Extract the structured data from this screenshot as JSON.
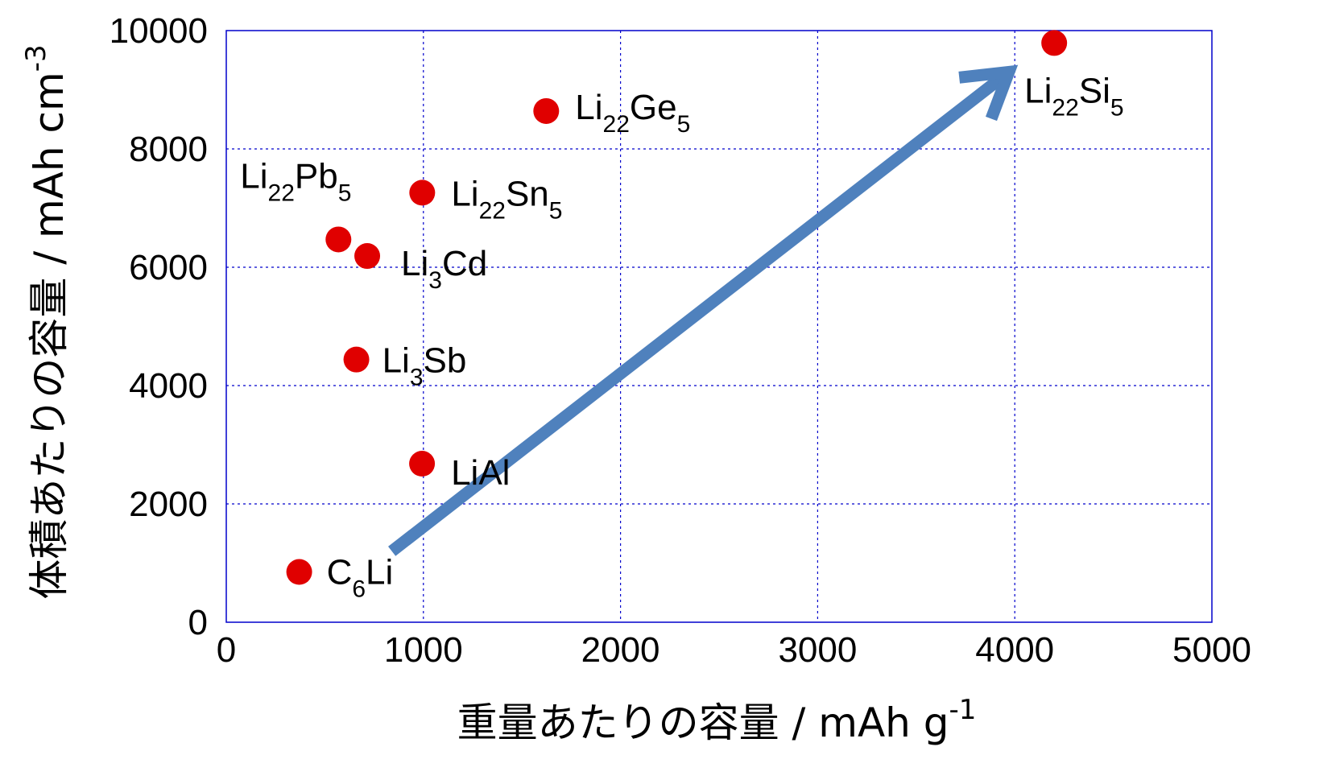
{
  "chart_data": {
    "type": "scatter",
    "title": "",
    "xlabel": "重量あたりの容量 / mAh g",
    "xlabel_sup": "-1",
    "ylabel": "体積あたりの容量 / mAh cm",
    "ylabel_sup": "-3",
    "xlim": [
      0,
      5000
    ],
    "ylim": [
      0,
      10000
    ],
    "x_ticks": [
      "0",
      "1000",
      "2000",
      "3000",
      "4000",
      "5000"
    ],
    "y_ticks": [
      "0",
      "2000",
      "4000",
      "6000",
      "8000",
      "10000"
    ],
    "grid": true,
    "marker_color": "#e00000",
    "points": [
      {
        "x": 370,
        "y": 850,
        "label": [
          [
            "C",
            ""
          ],
          [
            "6",
            "sub"
          ],
          [
            "Li",
            ""
          ]
        ]
      },
      {
        "x": 993,
        "y": 2680,
        "label": [
          [
            "LiAl",
            ""
          ]
        ]
      },
      {
        "x": 660,
        "y": 4440,
        "label": [
          [
            "Li",
            ""
          ],
          [
            "3",
            "sub"
          ],
          [
            "Sb",
            ""
          ]
        ]
      },
      {
        "x": 715,
        "y": 6190,
        "label": [
          [
            "Li",
            ""
          ],
          [
            "3",
            "sub"
          ],
          [
            "Cd",
            ""
          ]
        ]
      },
      {
        "x": 569,
        "y": 6470,
        "label": [
          [
            "Li",
            ""
          ],
          [
            "22",
            "sub"
          ],
          [
            "Pb",
            ""
          ],
          [
            "5",
            "sub"
          ]
        ]
      },
      {
        "x": 994,
        "y": 7260,
        "label": [
          [
            "Li",
            ""
          ],
          [
            "22",
            "sub"
          ],
          [
            "Sn",
            ""
          ],
          [
            "5",
            "sub"
          ]
        ]
      },
      {
        "x": 1623,
        "y": 8640,
        "label": [
          [
            "Li",
            ""
          ],
          [
            "22",
            "sub"
          ],
          [
            "Ge",
            ""
          ],
          [
            "5",
            "sub"
          ]
        ]
      },
      {
        "x": 4200,
        "y": 9790,
        "label": [
          [
            "Li",
            ""
          ],
          [
            "22",
            "sub"
          ],
          [
            "Si",
            ""
          ],
          [
            "5",
            "sub"
          ]
        ]
      }
    ],
    "arrow": {
      "from": [
        840,
        1200
      ],
      "to": [
        3970,
        9300
      ],
      "color": "#4f81bd"
    }
  }
}
